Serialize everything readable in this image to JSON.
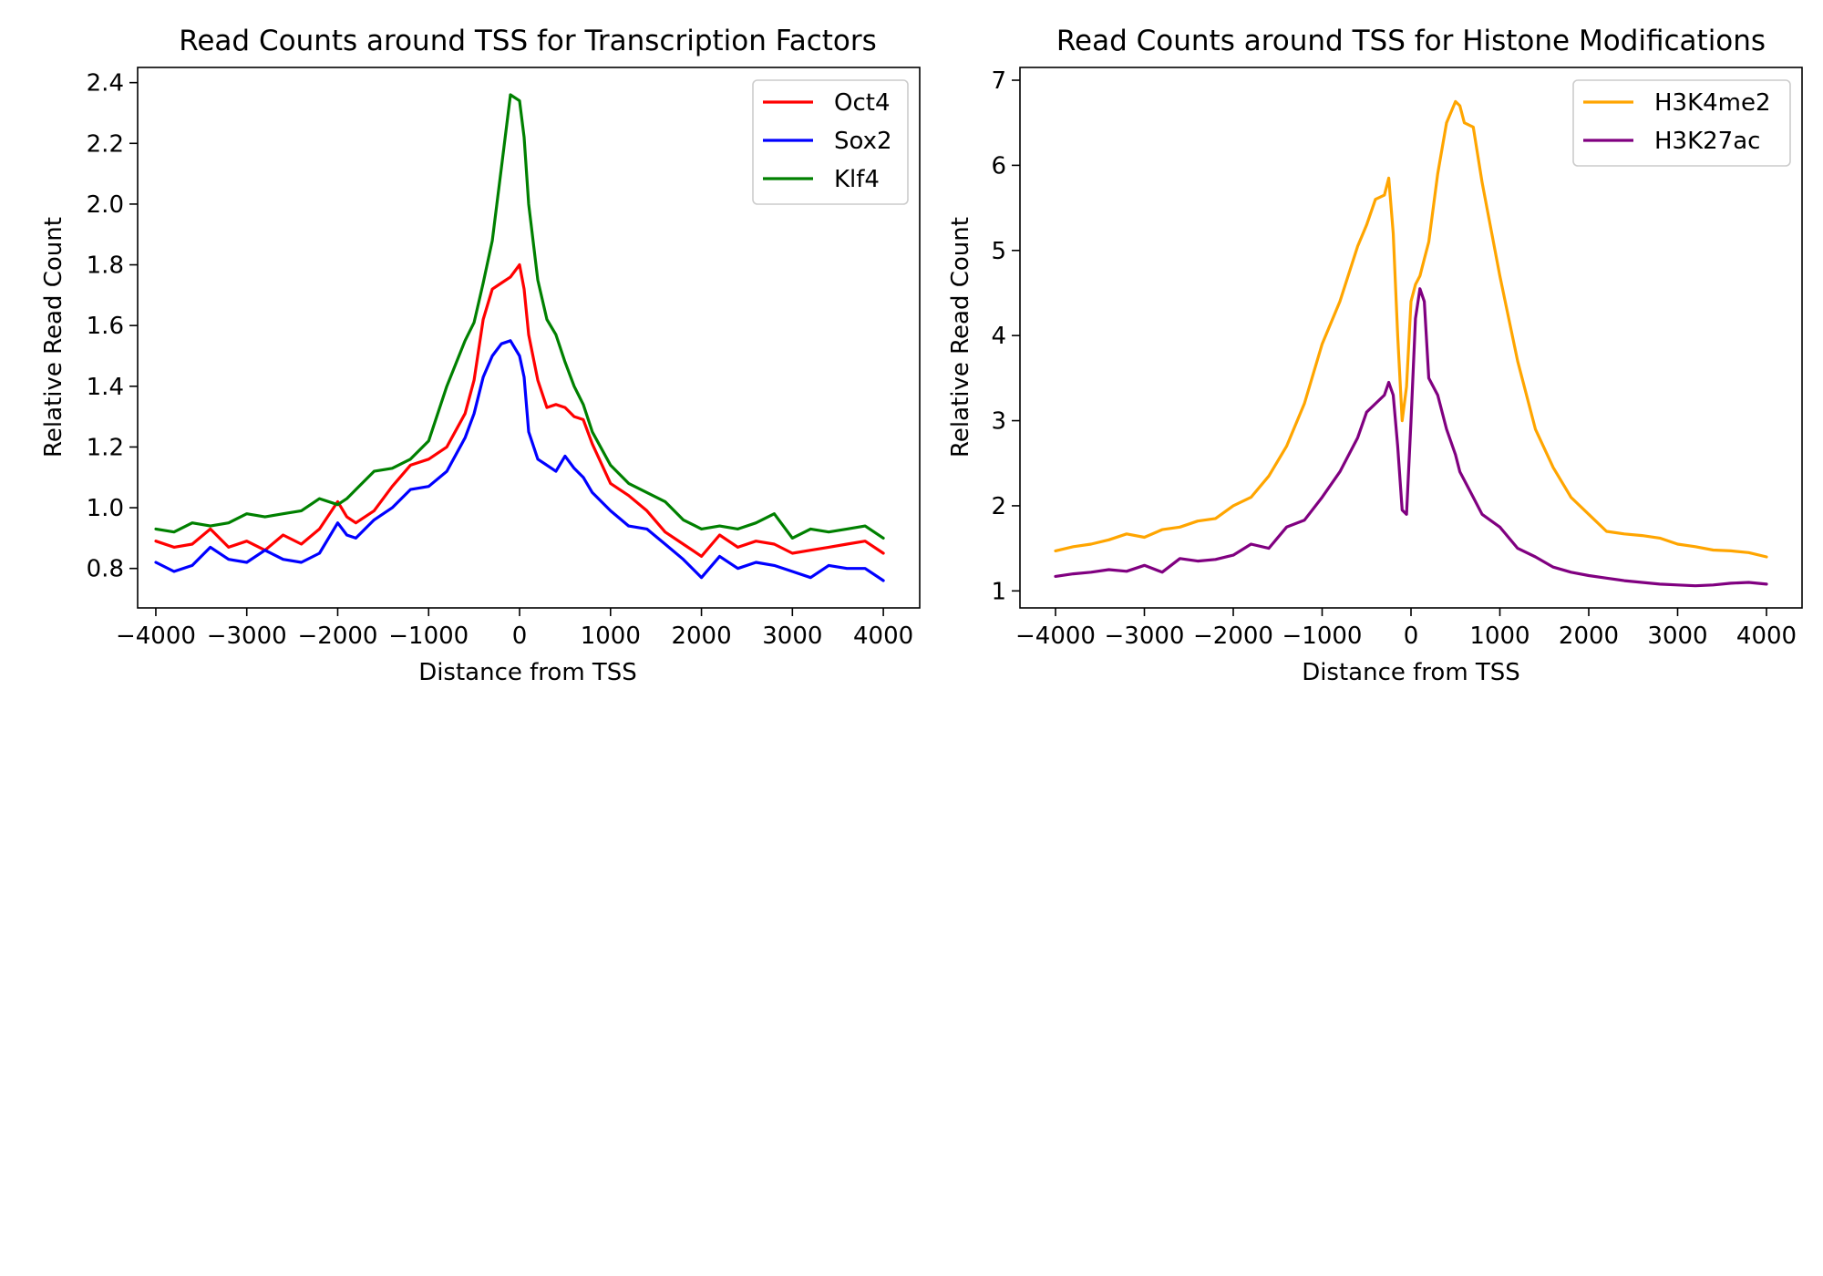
{
  "chart_data": [
    {
      "type": "line",
      "title": "Read Counts around TSS for Transcription Factors",
      "xlabel": "Distance from TSS",
      "ylabel": "Relative Read Count",
      "xlim": [
        -4200,
        4400
      ],
      "ylim": [
        0.67,
        2.45
      ],
      "xticks": [
        -4000,
        -3000,
        -2000,
        -1000,
        0,
        1000,
        2000,
        3000,
        4000
      ],
      "xtick_labels": [
        "−4000",
        "−3000",
        "−2000",
        "−1000",
        "0",
        "1000",
        "2000",
        "3000",
        "4000"
      ],
      "yticks": [
        0.8,
        1.0,
        1.2,
        1.4,
        1.6,
        1.8,
        2.0,
        2.2,
        2.4
      ],
      "ytick_labels": [
        "0.8",
        "1.0",
        "1.2",
        "1.4",
        "1.6",
        "1.8",
        "2.0",
        "2.2",
        "2.4"
      ],
      "grid": false,
      "legend_position": "top-right",
      "series": [
        {
          "name": "Oct4",
          "color": "#ff0000",
          "x": [
            -4000,
            -3800,
            -3600,
            -3400,
            -3200,
            -3000,
            -2800,
            -2600,
            -2400,
            -2200,
            -2000,
            -1900,
            -1800,
            -1600,
            -1400,
            -1200,
            -1000,
            -800,
            -600,
            -500,
            -400,
            -300,
            -200,
            -100,
            0,
            50,
            100,
            200,
            300,
            400,
            500,
            600,
            700,
            800,
            1000,
            1200,
            1400,
            1600,
            1800,
            2000,
            2200,
            2400,
            2600,
            2800,
            3000,
            3200,
            3400,
            3600,
            3800,
            4000
          ],
          "y": [
            0.89,
            0.87,
            0.88,
            0.93,
            0.87,
            0.89,
            0.86,
            0.91,
            0.88,
            0.93,
            1.02,
            0.97,
            0.95,
            0.99,
            1.07,
            1.14,
            1.16,
            1.2,
            1.31,
            1.42,
            1.62,
            1.72,
            1.74,
            1.76,
            1.8,
            1.72,
            1.57,
            1.42,
            1.33,
            1.34,
            1.33,
            1.3,
            1.29,
            1.21,
            1.08,
            1.04,
            0.99,
            0.92,
            0.88,
            0.84,
            0.91,
            0.87,
            0.89,
            0.88,
            0.85,
            0.86,
            0.87,
            0.88,
            0.89,
            0.85
          ]
        },
        {
          "name": "Sox2",
          "color": "#0000ff",
          "x": [
            -4000,
            -3800,
            -3600,
            -3400,
            -3200,
            -3000,
            -2800,
            -2600,
            -2400,
            -2200,
            -2000,
            -1900,
            -1800,
            -1600,
            -1400,
            -1200,
            -1000,
            -800,
            -600,
            -500,
            -400,
            -300,
            -200,
            -100,
            0,
            50,
            100,
            200,
            300,
            400,
            500,
            600,
            700,
            800,
            1000,
            1200,
            1400,
            1600,
            1800,
            2000,
            2200,
            2400,
            2600,
            2800,
            3000,
            3200,
            3400,
            3600,
            3800,
            4000
          ],
          "y": [
            0.82,
            0.79,
            0.81,
            0.87,
            0.83,
            0.82,
            0.86,
            0.83,
            0.82,
            0.85,
            0.95,
            0.91,
            0.9,
            0.96,
            1.0,
            1.06,
            1.07,
            1.12,
            1.23,
            1.31,
            1.43,
            1.5,
            1.54,
            1.55,
            1.5,
            1.43,
            1.25,
            1.16,
            1.14,
            1.12,
            1.17,
            1.13,
            1.1,
            1.05,
            0.99,
            0.94,
            0.93,
            0.88,
            0.83,
            0.77,
            0.84,
            0.8,
            0.82,
            0.81,
            0.79,
            0.77,
            0.81,
            0.8,
            0.8,
            0.76
          ]
        },
        {
          "name": "Klf4",
          "color": "#008000",
          "x": [
            -4000,
            -3800,
            -3600,
            -3400,
            -3200,
            -3000,
            -2800,
            -2600,
            -2400,
            -2200,
            -2000,
            -1900,
            -1800,
            -1600,
            -1400,
            -1200,
            -1000,
            -800,
            -600,
            -500,
            -400,
            -300,
            -200,
            -100,
            0,
            50,
            100,
            200,
            300,
            400,
            500,
            600,
            700,
            800,
            1000,
            1200,
            1400,
            1600,
            1800,
            2000,
            2200,
            2400,
            2600,
            2800,
            3000,
            3200,
            3400,
            3600,
            3800,
            4000
          ],
          "y": [
            0.93,
            0.92,
            0.95,
            0.94,
            0.95,
            0.98,
            0.97,
            0.98,
            0.99,
            1.03,
            1.01,
            1.03,
            1.06,
            1.12,
            1.13,
            1.16,
            1.22,
            1.4,
            1.55,
            1.61,
            1.74,
            1.88,
            2.12,
            2.36,
            2.34,
            2.22,
            2.0,
            1.75,
            1.62,
            1.57,
            1.48,
            1.4,
            1.34,
            1.25,
            1.14,
            1.08,
            1.05,
            1.02,
            0.96,
            0.93,
            0.94,
            0.93,
            0.95,
            0.98,
            0.9,
            0.93,
            0.92,
            0.93,
            0.94,
            0.9
          ]
        }
      ]
    },
    {
      "type": "line",
      "title": "Read Counts around TSS for Histone Modifications",
      "xlabel": "Distance from TSS",
      "ylabel": "Relative Read Count",
      "xlim": [
        -4400,
        4400
      ],
      "ylim": [
        0.8,
        7.15
      ],
      "xticks": [
        -4000,
        -3000,
        -2000,
        -1000,
        0,
        1000,
        2000,
        3000,
        4000
      ],
      "xtick_labels": [
        "−4000",
        "−3000",
        "−2000",
        "−1000",
        "0",
        "1000",
        "2000",
        "3000",
        "4000"
      ],
      "yticks": [
        1,
        2,
        3,
        4,
        5,
        6,
        7
      ],
      "ytick_labels": [
        "1",
        "2",
        "3",
        "4",
        "5",
        "6",
        "7"
      ],
      "grid": false,
      "legend_position": "top-right",
      "series": [
        {
          "name": "H3K4me2",
          "color": "#ffa500",
          "x": [
            -4000,
            -3800,
            -3600,
            -3400,
            -3200,
            -3000,
            -2800,
            -2600,
            -2400,
            -2200,
            -2000,
            -1800,
            -1600,
            -1400,
            -1200,
            -1000,
            -800,
            -600,
            -500,
            -400,
            -300,
            -250,
            -200,
            -150,
            -100,
            -50,
            0,
            50,
            100,
            150,
            200,
            300,
            400,
            500,
            550,
            600,
            700,
            800,
            1000,
            1200,
            1400,
            1600,
            1800,
            2000,
            2200,
            2400,
            2600,
            2800,
            3000,
            3200,
            3400,
            3600,
            3800,
            4000
          ],
          "y": [
            1.47,
            1.52,
            1.55,
            1.6,
            1.67,
            1.63,
            1.72,
            1.75,
            1.82,
            1.85,
            2.0,
            2.1,
            2.35,
            2.7,
            3.2,
            3.9,
            4.4,
            5.05,
            5.3,
            5.6,
            5.65,
            5.85,
            5.2,
            4.0,
            3.0,
            3.4,
            4.4,
            4.6,
            4.7,
            4.9,
            5.1,
            5.9,
            6.5,
            6.75,
            6.7,
            6.5,
            6.45,
            5.8,
            4.7,
            3.7,
            2.9,
            2.45,
            2.1,
            1.9,
            1.7,
            1.67,
            1.65,
            1.62,
            1.55,
            1.52,
            1.48,
            1.47,
            1.45,
            1.4
          ]
        },
        {
          "name": "H3K27ac",
          "color": "#800080",
          "x": [
            -4000,
            -3800,
            -3600,
            -3400,
            -3200,
            -3000,
            -2800,
            -2600,
            -2400,
            -2200,
            -2000,
            -1800,
            -1600,
            -1400,
            -1200,
            -1000,
            -800,
            -600,
            -500,
            -400,
            -300,
            -250,
            -200,
            -150,
            -100,
            -50,
            0,
            50,
            100,
            150,
            200,
            300,
            400,
            500,
            550,
            600,
            700,
            800,
            1000,
            1200,
            1400,
            1600,
            1800,
            2000,
            2200,
            2400,
            2600,
            2800,
            3000,
            3200,
            3400,
            3600,
            3800,
            4000
          ],
          "y": [
            1.17,
            1.2,
            1.22,
            1.25,
            1.23,
            1.3,
            1.22,
            1.38,
            1.35,
            1.37,
            1.42,
            1.55,
            1.5,
            1.75,
            1.83,
            2.1,
            2.4,
            2.8,
            3.1,
            3.2,
            3.3,
            3.45,
            3.3,
            2.7,
            1.95,
            1.9,
            3.0,
            4.2,
            4.55,
            4.4,
            3.5,
            3.3,
            2.9,
            2.6,
            2.4,
            2.3,
            2.1,
            1.9,
            1.75,
            1.5,
            1.4,
            1.28,
            1.22,
            1.18,
            1.15,
            1.12,
            1.1,
            1.08,
            1.07,
            1.06,
            1.07,
            1.09,
            1.1,
            1.08
          ]
        }
      ]
    }
  ]
}
